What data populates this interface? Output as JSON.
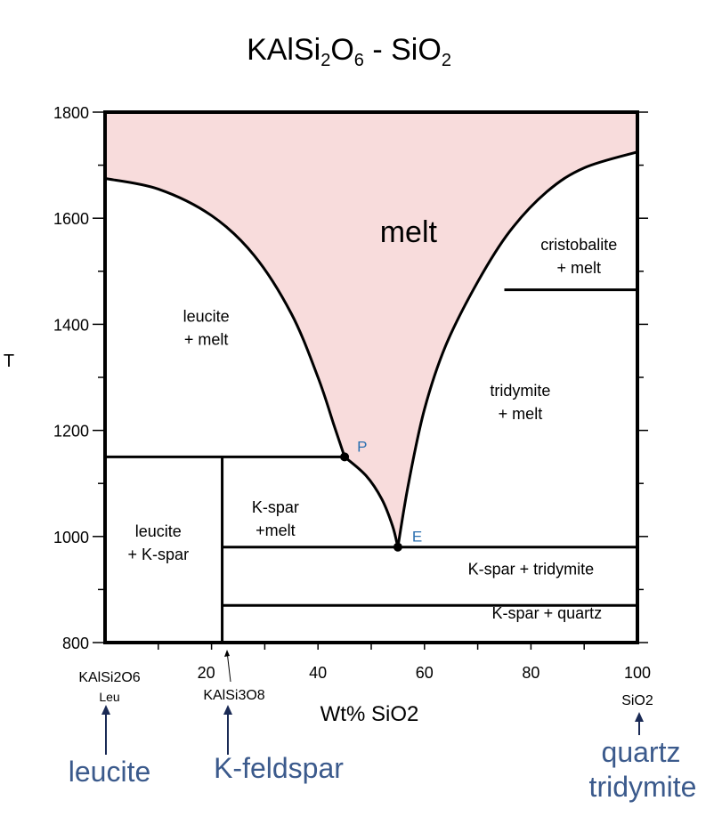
{
  "chart_data": {
    "type": "phase-diagram",
    "title": {
      "base": "KAlSi",
      "sub1": "2",
      "mid": "O",
      "sub2": "6",
      "tail": " - SiO",
      "sub3": "2"
    },
    "xlabel": "Wt% SiO2",
    "ylabel": "T",
    "xlim": [
      0,
      100
    ],
    "ylim": [
      800,
      1800
    ],
    "xticks": [
      20,
      40,
      60,
      80,
      100
    ],
    "yticks": [
      800,
      1000,
      1200,
      1400,
      1600,
      1800
    ],
    "endmembers": {
      "left_formula": "KAlSi2O6",
      "left_abbrev": "Leu",
      "middle_formula": "KAlSi3O8",
      "right_formula": "SiO2"
    },
    "minerals": {
      "left": "leucite",
      "middle": "K-feldspar",
      "right_line1": "quartz",
      "right_line2": "tridymite"
    },
    "liquidus_left": [
      [
        0,
        1675
      ],
      [
        10,
        1655
      ],
      [
        20,
        1605
      ],
      [
        28,
        1530
      ],
      [
        35,
        1420
      ],
      [
        40,
        1300
      ],
      [
        43,
        1210
      ],
      [
        45,
        1150
      ]
    ],
    "liquidus_mid": [
      [
        45,
        1150
      ],
      [
        49,
        1115
      ],
      [
        52,
        1070
      ],
      [
        54,
        1020
      ],
      [
        55,
        980
      ]
    ],
    "liquidus_right": [
      [
        55,
        980
      ],
      [
        57,
        1100
      ],
      [
        60,
        1240
      ],
      [
        64,
        1360
      ],
      [
        70,
        1480
      ],
      [
        76,
        1575
      ],
      [
        83,
        1650
      ],
      [
        90,
        1695
      ],
      [
        100,
        1725
      ]
    ],
    "boundaries": {
      "peritectic_T": 1150,
      "peritectic_x_range": [
        0,
        45
      ],
      "eutectic_T": 980,
      "eutectic_x_range": [
        22,
        100
      ],
      "cristobalite_tridymite_T": 1465,
      "cristobalite_tridymite_x_range": [
        75,
        100
      ],
      "tridymite_quartz_T": 870,
      "tridymite_quartz_x_range": [
        22,
        100
      ],
      "kspar_composition_x": 22
    },
    "points": [
      {
        "name": "P",
        "x": 45,
        "T": 1150
      },
      {
        "name": "E",
        "x": 55,
        "T": 980
      }
    ],
    "fields": [
      {
        "line1": "melt",
        "line2": "",
        "x": 57,
        "T": 1555
      },
      {
        "line1": "leucite",
        "line2": "+ melt",
        "x": 19,
        "T": 1405
      },
      {
        "line1": "cristobalite",
        "line2": "+ melt",
        "x": 89,
        "T": 1540
      },
      {
        "line1": "tridymite",
        "line2": "+ melt",
        "x": 78,
        "T": 1265
      },
      {
        "line1": "K-spar",
        "line2": "+melt",
        "x": 32,
        "T": 1045
      },
      {
        "line1": "leucite",
        "line2": "+ K-spar",
        "x": 10,
        "T": 1000
      },
      {
        "line1": "K-spar + tridymite",
        "line2": "",
        "x": 80,
        "T": 928
      },
      {
        "line1": "K-spar + quartz",
        "line2": "",
        "x": 83,
        "T": 845
      }
    ],
    "colors": {
      "melt_fill": "#f8dcdc",
      "line": "#000000",
      "blue_text": "#3b5a8c",
      "point_label": "#2a6fb0",
      "arrow": "#1a2a55"
    }
  }
}
